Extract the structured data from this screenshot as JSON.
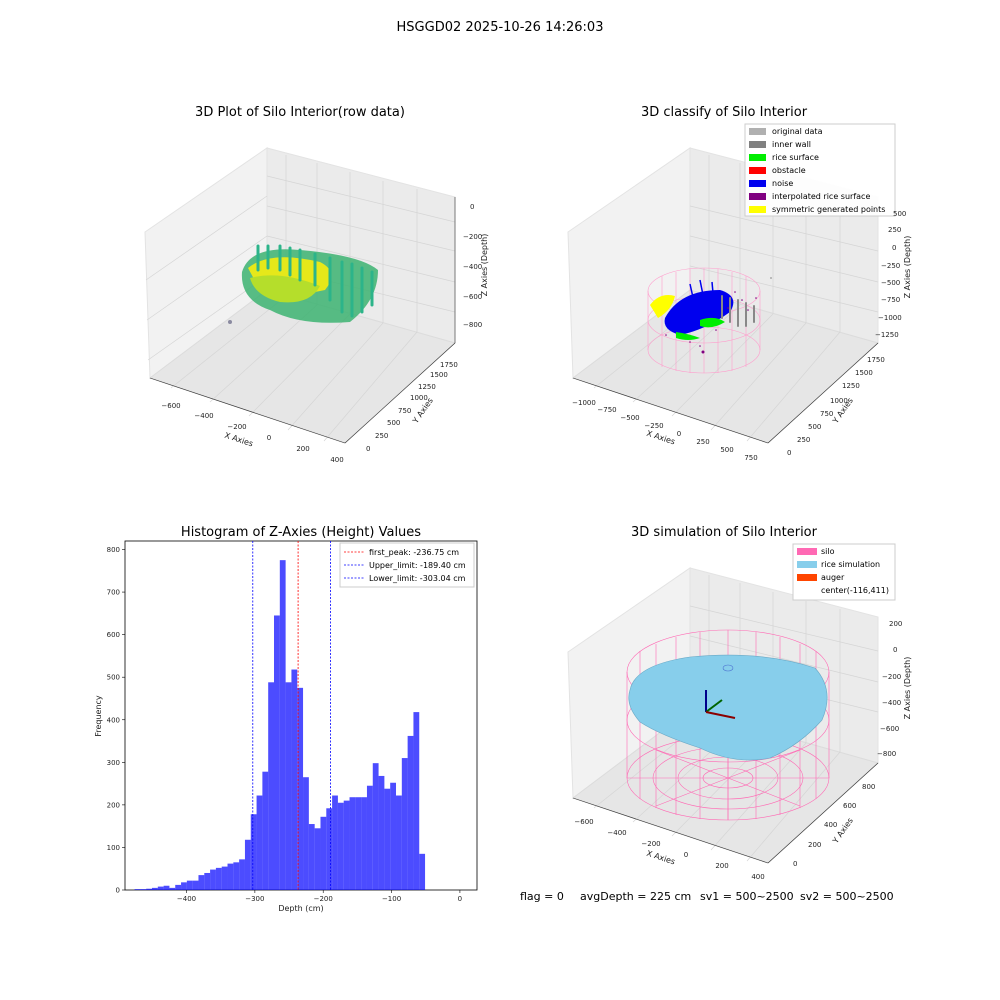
{
  "figure": {
    "suptitle": "HSGGD02 2025-10-26 14:26:03",
    "info_line": {
      "flag": "flag = 0",
      "avg_depth": "avgDepth = 225 cm",
      "sv1": "sv1 = 500~2500",
      "sv2": "sv2 = 500~2500"
    }
  },
  "panels": {
    "raw": {
      "title": "3D Plot of Silo Interior(row data)",
      "xlabel": "X Axies",
      "ylabel": "Y Axies",
      "zlabel": "Z Axies (Depth)",
      "xticks": [
        "−600",
        "−400",
        "−200",
        "0",
        "200",
        "400"
      ],
      "yticks": [
        "0",
        "250",
        "500",
        "750",
        "1000",
        "1250",
        "1500",
        "1750"
      ],
      "zticks": [
        "0",
        "−200",
        "−400",
        "−600",
        "−800"
      ]
    },
    "classify": {
      "title": "3D classify of Silo Interior",
      "xlabel": "X Axies",
      "ylabel": "Y Axies",
      "zlabel": "Z Axies (Depth)",
      "xticks": [
        "−1000",
        "−750",
        "−500",
        "−250",
        "0",
        "250",
        "500",
        "750"
      ],
      "yticks": [
        "0",
        "250",
        "500",
        "750",
        "1000",
        "1250",
        "1500",
        "1750"
      ],
      "zticks": [
        "500",
        "250",
        "0",
        "−250",
        "−500",
        "−750",
        "−1000",
        "−1250"
      ],
      "legend": [
        {
          "label": "original data",
          "color": "#b0b0b0"
        },
        {
          "label": "inner wall",
          "color": "#808080"
        },
        {
          "label": "rice surface",
          "color": "#00ee00"
        },
        {
          "label": "obstacle",
          "color": "#ff0000"
        },
        {
          "label": "noise",
          "color": "#0000ee"
        },
        {
          "label": "interpolated rice surface",
          "color": "#800080"
        },
        {
          "label": "symmetric generated points",
          "color": "#ffff00"
        }
      ]
    },
    "simulation": {
      "title": "3D simulation of Silo Interior",
      "xlabel": "X Axies",
      "ylabel": "Y Axies",
      "zlabel": "Z Axies (Depth)",
      "xticks": [
        "−600",
        "−400",
        "−200",
        "0",
        "200",
        "400"
      ],
      "yticks": [
        "0",
        "200",
        "400",
        "600",
        "800"
      ],
      "zticks": [
        "200",
        "0",
        "−200",
        "−400",
        "−600",
        "−800"
      ],
      "legend": [
        {
          "label": "silo",
          "color": "#ff69b4"
        },
        {
          "label": "rice simulation",
          "color": "#87ceeb"
        },
        {
          "label": "auger",
          "color": "#ff4500"
        },
        {
          "label": "center(-116,411)",
          "color": ""
        }
      ]
    }
  },
  "chart_data": {
    "type": "bar",
    "title": "Histogram of Z-Axies (Height) Values",
    "xlabel": "Depth (cm)",
    "ylabel": "Frequency",
    "xlim": [
      -490,
      25
    ],
    "ylim": [
      0,
      820
    ],
    "bin_width": 8.5,
    "bin_start": -476,
    "values": [
      2,
      2,
      3,
      5,
      8,
      10,
      5,
      12,
      18,
      22,
      22,
      35,
      40,
      48,
      52,
      55,
      62,
      65,
      72,
      118,
      178,
      222,
      278,
      488,
      645,
      775,
      488,
      518,
      475,
      265,
      155,
      145,
      172,
      192,
      222,
      205,
      210,
      218,
      218,
      218,
      245,
      298,
      268,
      238,
      252,
      222,
      310,
      362,
      418,
      85
    ],
    "xticks": [
      -400,
      -300,
      -200,
      -100,
      0
    ],
    "yticks": [
      0,
      100,
      200,
      300,
      400,
      500,
      600,
      700,
      800
    ],
    "bar_color": "#0000ff",
    "lines": [
      {
        "label": "first_peak: -236.75 cm",
        "value": -236.75,
        "color": "#ff0000"
      },
      {
        "label": "Upper_limit: -189.40 cm",
        "value": -189.4,
        "color": "#0000ff"
      },
      {
        "label": "Lower_limit: -303.04 cm",
        "value": -303.04,
        "color": "#0000ff"
      }
    ]
  }
}
